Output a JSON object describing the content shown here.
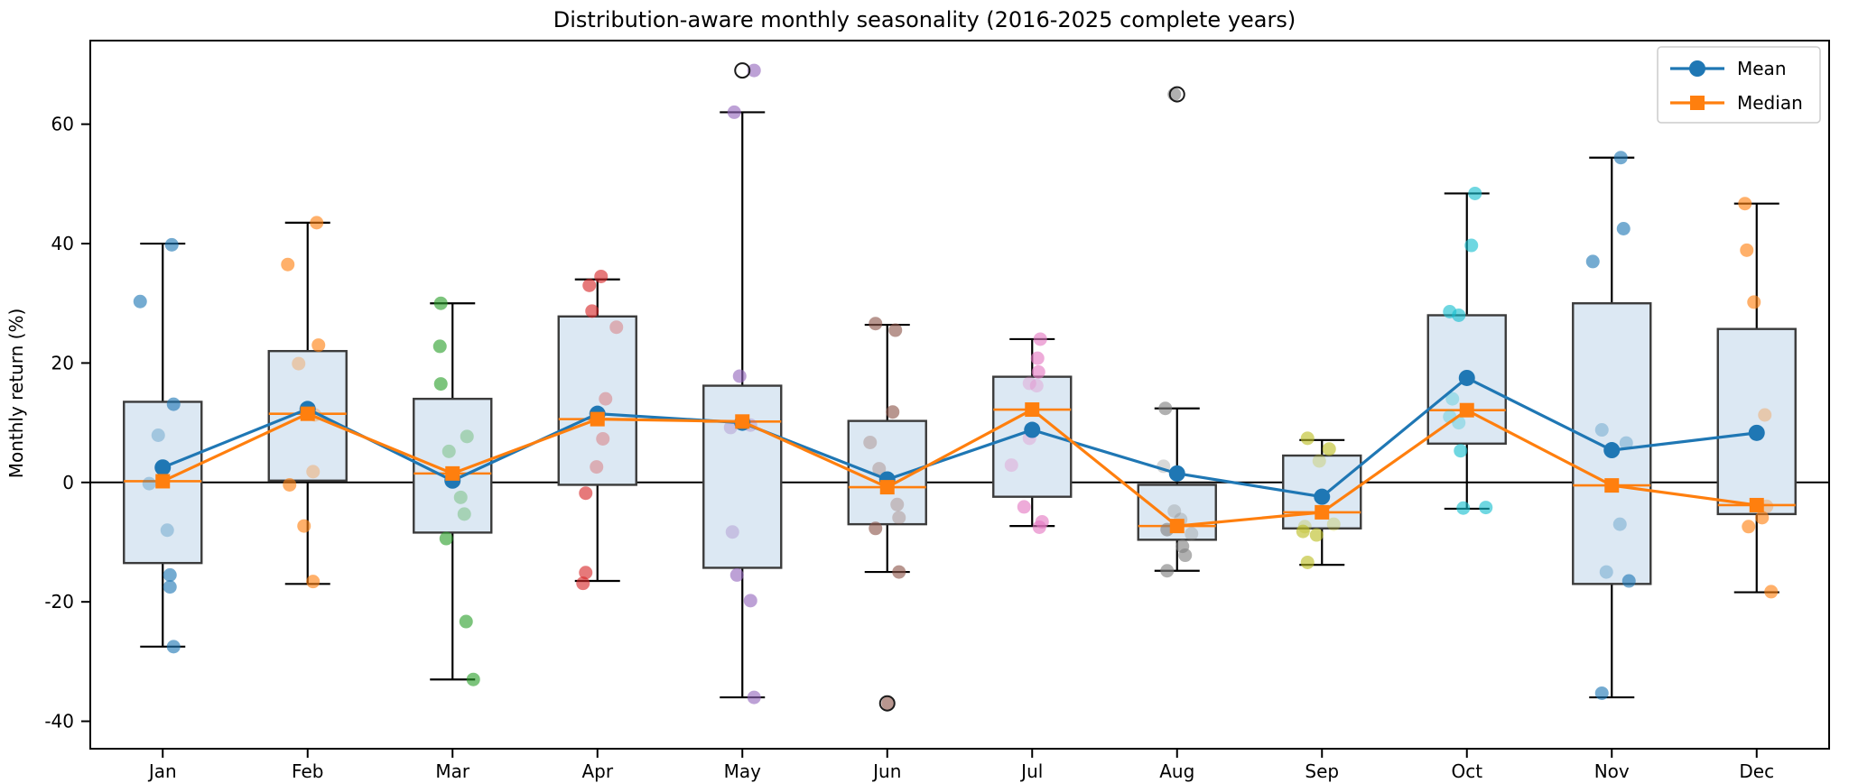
{
  "title": "Distribution-aware monthly seasonality (2016-2025 complete years)",
  "ylabel": "Monthly return (%)",
  "legend": {
    "items": [
      {
        "label": "Mean",
        "color": "#1f77b4",
        "marker": "circle"
      },
      {
        "label": "Median",
        "color": "#ff7f0e",
        "marker": "square"
      }
    ]
  },
  "chart_data": {
    "type": "boxplot-with-trend-lines",
    "title": "Distribution-aware monthly seasonality (2016-2025 complete years)",
    "xlabel": "",
    "ylabel": "Monthly return (%)",
    "categories": [
      "Jan",
      "Feb",
      "Mar",
      "Apr",
      "May",
      "Jun",
      "Jul",
      "Aug",
      "Sep",
      "Oct",
      "Nov",
      "Dec"
    ],
    "y_ticks": [
      -40,
      -20,
      0,
      20,
      40,
      60
    ],
    "ylim": [
      -44.6,
      74.0
    ],
    "grid": false,
    "zero_line": 0,
    "legend_position": "upper right",
    "series": [
      {
        "name": "Mean",
        "color": "#1f77b4",
        "marker": "circle",
        "values": [
          2.5,
          12.3,
          0.3,
          11.5,
          10.0,
          0.5,
          8.8,
          1.5,
          -2.4,
          17.5,
          5.4,
          8.3
        ]
      },
      {
        "name": "Median",
        "color": "#ff7f0e",
        "marker": "square",
        "values": [
          0.2,
          11.5,
          1.5,
          10.6,
          10.2,
          -0.8,
          12.2,
          -7.3,
          -5.0,
          12.1,
          -0.5,
          -3.8
        ]
      }
    ],
    "boxes": [
      {
        "month": "Jan",
        "q1": -13.5,
        "median": 0.2,
        "q3": 13.5,
        "whisker_low": -27.5,
        "whisker_high": 40.0,
        "fliers": [],
        "point_color": "#1f77b4",
        "points": [
          {
            "v": 39.8,
            "dx": 10
          },
          {
            "v": 30.3,
            "dx": -25
          },
          {
            "v": 13.1,
            "dx": 12
          },
          {
            "v": 7.9,
            "dx": -5,
            "light": true
          },
          {
            "v": -0.2,
            "dx": -15,
            "light": true
          },
          {
            "v": -8.0,
            "dx": 5,
            "light": true
          },
          {
            "v": -15.5,
            "dx": 8
          },
          {
            "v": -17.5,
            "dx": 8
          },
          {
            "v": -27.5,
            "dx": 12
          }
        ]
      },
      {
        "month": "Feb",
        "q1": 0.3,
        "median": 11.5,
        "q3": 22.0,
        "whisker_low": -17.0,
        "whisker_high": 43.5,
        "fliers": [],
        "point_color": "#ff7f0e",
        "points": [
          {
            "v": 43.5,
            "dx": 10
          },
          {
            "v": 36.5,
            "dx": -22
          },
          {
            "v": 23.0,
            "dx": 12
          },
          {
            "v": 19.9,
            "dx": -10,
            "light": true
          },
          {
            "v": 11.3,
            "dx": 8,
            "light": true
          },
          {
            "v": 1.8,
            "dx": 6,
            "light": true
          },
          {
            "v": -0.4,
            "dx": -20
          },
          {
            "v": -7.3,
            "dx": -4
          },
          {
            "v": -16.6,
            "dx": 6
          }
        ]
      },
      {
        "month": "Mar",
        "q1": -8.4,
        "median": 1.5,
        "q3": 14.0,
        "whisker_low": -33.0,
        "whisker_high": 30.0,
        "fliers": [],
        "point_color": "#2ca02c",
        "points": [
          {
            "v": 30.0,
            "dx": -13
          },
          {
            "v": 22.8,
            "dx": -14
          },
          {
            "v": 16.5,
            "dx": -13
          },
          {
            "v": 7.7,
            "dx": 16,
            "light": true
          },
          {
            "v": 5.2,
            "dx": -4,
            "light": true
          },
          {
            "v": -2.5,
            "dx": 9,
            "light": true
          },
          {
            "v": -5.3,
            "dx": 13,
            "light": true
          },
          {
            "v": -9.4,
            "dx": -7
          },
          {
            "v": -23.3,
            "dx": 15
          },
          {
            "v": -33.0,
            "dx": 23
          }
        ]
      },
      {
        "month": "Apr",
        "q1": -0.4,
        "median": 10.6,
        "q3": 27.8,
        "whisker_low": -16.5,
        "whisker_high": 34.0,
        "fliers": [],
        "point_color": "#d62728",
        "points": [
          {
            "v": 34.5,
            "dx": 4
          },
          {
            "v": 33.0,
            "dx": -9
          },
          {
            "v": 28.7,
            "dx": -6
          },
          {
            "v": 26.0,
            "dx": 21,
            "light": true
          },
          {
            "v": 14.0,
            "dx": 9,
            "light": true
          },
          {
            "v": 7.3,
            "dx": 6,
            "light": true
          },
          {
            "v": 2.6,
            "dx": -1,
            "light": true
          },
          {
            "v": -1.8,
            "dx": -13
          },
          {
            "v": -15.1,
            "dx": -13
          },
          {
            "v": -16.9,
            "dx": -16
          }
        ]
      },
      {
        "month": "May",
        "q1": -14.3,
        "median": 10.2,
        "q3": 16.2,
        "whisker_low": -36.0,
        "whisker_high": 62.0,
        "fliers": [
          69.0
        ],
        "point_color": "#9467bd",
        "points": [
          {
            "v": 69.0,
            "dx": 13
          },
          {
            "v": 62.0,
            "dx": -9
          },
          {
            "v": 17.8,
            "dx": -3
          },
          {
            "v": 9.6,
            "dx": 9,
            "light": true
          },
          {
            "v": 9.2,
            "dx": -13,
            "light": true
          },
          {
            "v": -8.3,
            "dx": -11,
            "light": true
          },
          {
            "v": -15.5,
            "dx": -6
          },
          {
            "v": -19.8,
            "dx": 9
          },
          {
            "v": -36.0,
            "dx": 13
          }
        ]
      },
      {
        "month": "Jun",
        "q1": -7.0,
        "median": -0.8,
        "q3": 10.3,
        "whisker_low": -15.0,
        "whisker_high": 26.4,
        "fliers": [
          -37.0
        ],
        "point_color": "#8c564b",
        "points": [
          {
            "v": 26.6,
            "dx": -13
          },
          {
            "v": 25.5,
            "dx": 9
          },
          {
            "v": 11.8,
            "dx": 6
          },
          {
            "v": 6.7,
            "dx": -19,
            "light": true
          },
          {
            "v": 2.3,
            "dx": -9,
            "light": true
          },
          {
            "v": -3.7,
            "dx": 11,
            "light": true
          },
          {
            "v": -5.9,
            "dx": 13,
            "light": true
          },
          {
            "v": -7.7,
            "dx": -13
          },
          {
            "v": -15.0,
            "dx": 13
          },
          {
            "v": -37.0,
            "dx": 1
          }
        ]
      },
      {
        "month": "Jul",
        "q1": -2.4,
        "median": 12.2,
        "q3": 17.7,
        "whisker_low": -7.3,
        "whisker_high": 24.0,
        "fliers": [],
        "point_color": "#e377c2",
        "points": [
          {
            "v": 24.0,
            "dx": 9
          },
          {
            "v": 20.8,
            "dx": 6
          },
          {
            "v": 18.5,
            "dx": 7
          },
          {
            "v": 16.6,
            "dx": -3,
            "light": true
          },
          {
            "v": 16.2,
            "dx": 5,
            "light": true
          },
          {
            "v": 7.4,
            "dx": -3,
            "light": true
          },
          {
            "v": 2.9,
            "dx": -23,
            "light": true
          },
          {
            "v": -4.1,
            "dx": -9
          },
          {
            "v": -6.6,
            "dx": 11
          },
          {
            "v": -7.5,
            "dx": 8
          }
        ]
      },
      {
        "month": "Aug",
        "q1": -9.6,
        "median": -7.3,
        "q3": -0.4,
        "whisker_low": -14.8,
        "whisker_high": 12.4,
        "fliers": [
          65.0
        ],
        "point_color": "#7f7f7f",
        "points": [
          {
            "v": 65.0,
            "dx": -3
          },
          {
            "v": 12.4,
            "dx": -13
          },
          {
            "v": 2.7,
            "dx": -15,
            "light": true
          },
          {
            "v": -4.8,
            "dx": -3,
            "light": true
          },
          {
            "v": -6.2,
            "dx": 4,
            "light": true
          },
          {
            "v": -7.9,
            "dx": -11
          },
          {
            "v": -8.6,
            "dx": 16,
            "light": true
          },
          {
            "v": -10.7,
            "dx": 6
          },
          {
            "v": -12.2,
            "dx": 9
          },
          {
            "v": -14.8,
            "dx": -11
          }
        ]
      },
      {
        "month": "Sep",
        "q1": -7.7,
        "median": -5.0,
        "q3": 4.5,
        "whisker_low": -13.8,
        "whisker_high": 7.1,
        "fliers": [],
        "point_color": "#bcbd22",
        "points": [
          {
            "v": 7.4,
            "dx": -16
          },
          {
            "v": 5.6,
            "dx": 8
          },
          {
            "v": 3.6,
            "dx": -3,
            "light": true
          },
          {
            "v": -7.0,
            "dx": 13,
            "light": true
          },
          {
            "v": -7.4,
            "dx": -19,
            "light": true
          },
          {
            "v": -8.2,
            "dx": -21
          },
          {
            "v": -8.8,
            "dx": -6
          },
          {
            "v": -13.4,
            "dx": -16
          }
        ]
      },
      {
        "month": "Oct",
        "q1": 6.5,
        "median": 12.1,
        "q3": 28.0,
        "whisker_low": -4.4,
        "whisker_high": 48.4,
        "fliers": [],
        "point_color": "#17becf",
        "points": [
          {
            "v": 48.4,
            "dx": 9
          },
          {
            "v": 39.7,
            "dx": 5
          },
          {
            "v": 28.6,
            "dx": -19
          },
          {
            "v": 28.0,
            "dx": -9
          },
          {
            "v": 14.0,
            "dx": -16,
            "light": true
          },
          {
            "v": 11.0,
            "dx": -19,
            "light": true
          },
          {
            "v": 10.0,
            "dx": -9,
            "light": true
          },
          {
            "v": 5.3,
            "dx": -7
          },
          {
            "v": -4.3,
            "dx": -4
          },
          {
            "v": -4.2,
            "dx": 21
          }
        ]
      },
      {
        "month": "Nov",
        "q1": -17.0,
        "median": -0.5,
        "q3": 30.0,
        "whisker_low": -36.0,
        "whisker_high": 54.4,
        "fliers": [],
        "point_color": "#1f77b4",
        "points": [
          {
            "v": 54.4,
            "dx": 10
          },
          {
            "v": 42.5,
            "dx": 13
          },
          {
            "v": 37.0,
            "dx": -21
          },
          {
            "v": 8.8,
            "dx": -11,
            "light": true
          },
          {
            "v": 6.6,
            "dx": 16,
            "light": true
          },
          {
            "v": -7.0,
            "dx": 9,
            "light": true
          },
          {
            "v": -15.0,
            "dx": -6,
            "light": true
          },
          {
            "v": -16.5,
            "dx": 19
          },
          {
            "v": -35.3,
            "dx": -11
          }
        ]
      },
      {
        "month": "Dec",
        "q1": -5.3,
        "median": -3.8,
        "q3": 25.7,
        "whisker_low": -18.4,
        "whisker_high": 46.7,
        "fliers": [],
        "point_color": "#ff7f0e",
        "points": [
          {
            "v": 46.7,
            "dx": -13
          },
          {
            "v": 38.9,
            "dx": -11
          },
          {
            "v": 30.2,
            "dx": -3
          },
          {
            "v": 11.3,
            "dx": 9,
            "light": true
          },
          {
            "v": -4.0,
            "dx": 11,
            "light": true
          },
          {
            "v": -5.9,
            "dx": 6
          },
          {
            "v": -7.4,
            "dx": -9
          },
          {
            "v": -18.3,
            "dx": 16
          }
        ]
      }
    ],
    "style": {
      "box_fill": "#dce8f3",
      "box_edge": "#3b3b3b",
      "whisker_color": "#000000",
      "box_median_color": "#ff7f0e",
      "mean_color": "#1f77b4",
      "median_color": "#ff7f0e"
    }
  }
}
